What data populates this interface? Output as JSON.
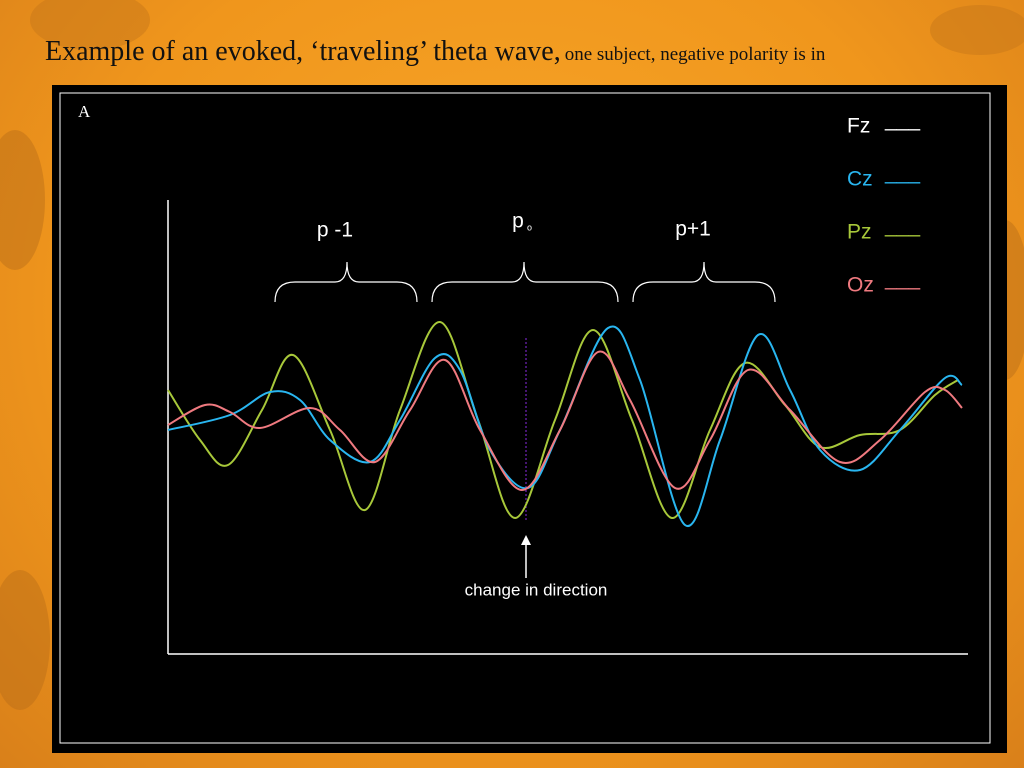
{
  "header": {
    "title": "Example of an evoked, ‘traveling’ theta wave,",
    "subtitle": "one subject, negative polarity is in"
  },
  "panel": {
    "label": "A"
  },
  "legend": [
    {
      "name": "Fz",
      "line": "___",
      "color": "#ffffff"
    },
    {
      "name": "Cz",
      "line": "___",
      "color": "#29b6f0"
    },
    {
      "name": "Pz",
      "line": "___",
      "color": "#a8c83a"
    },
    {
      "name": "Oz",
      "line": "___",
      "color": "#f07a80"
    }
  ],
  "annotations": {
    "p_minus": "p -1",
    "p_zero": "p",
    "p_zero_sub": "o",
    "p_plus": "p+1",
    "arrow_label": "change in direction"
  }
}
